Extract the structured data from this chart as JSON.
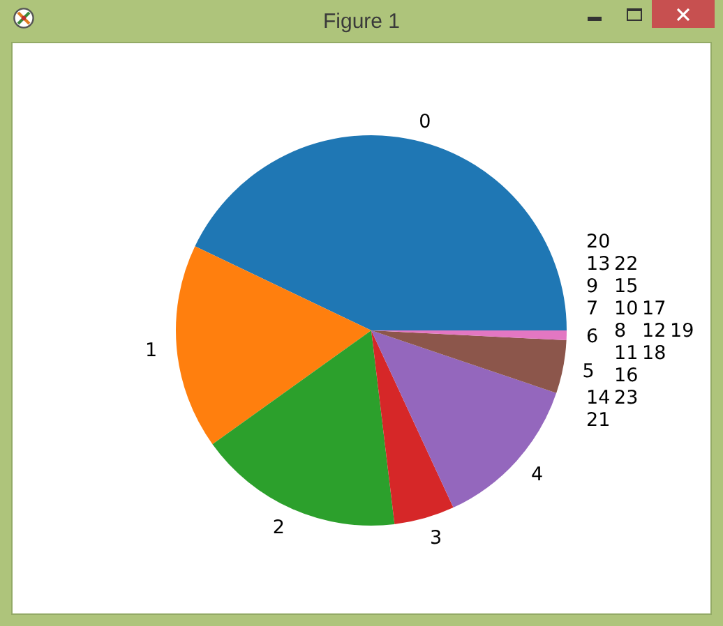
{
  "chart_data": {
    "type": "pie",
    "title": "Figure 1",
    "categories": [
      "0",
      "1",
      "2",
      "3",
      "4",
      "5",
      "6",
      "7",
      "8",
      "9",
      "10",
      "11",
      "12",
      "13",
      "14",
      "15",
      "16",
      "17",
      "18",
      "19",
      "20",
      "21",
      "22",
      "23"
    ],
    "values": [
      42.9,
      17.0,
      17.0,
      5.0,
      12.9,
      4.4,
      0.8,
      0,
      0,
      0,
      0,
      0,
      0,
      0,
      0,
      0,
      0,
      0,
      0,
      0,
      0,
      0,
      0,
      0
    ],
    "colors": [
      "#1f77b4",
      "#ff7f0e",
      "#2ca02c",
      "#d62728",
      "#9467bd",
      "#8c564b",
      "#e377c2",
      "#7f7f7f",
      "#bcbd22",
      "#17becf",
      "#1f77b4",
      "#ff7f0e",
      "#2ca02c",
      "#d62728",
      "#9467bd",
      "#8c564b",
      "#e377c2",
      "#7f7f7f",
      "#bcbd22",
      "#17becf",
      "#1f77b4",
      "#ff7f0e",
      "#2ca02c",
      "#d62728"
    ]
  }
}
